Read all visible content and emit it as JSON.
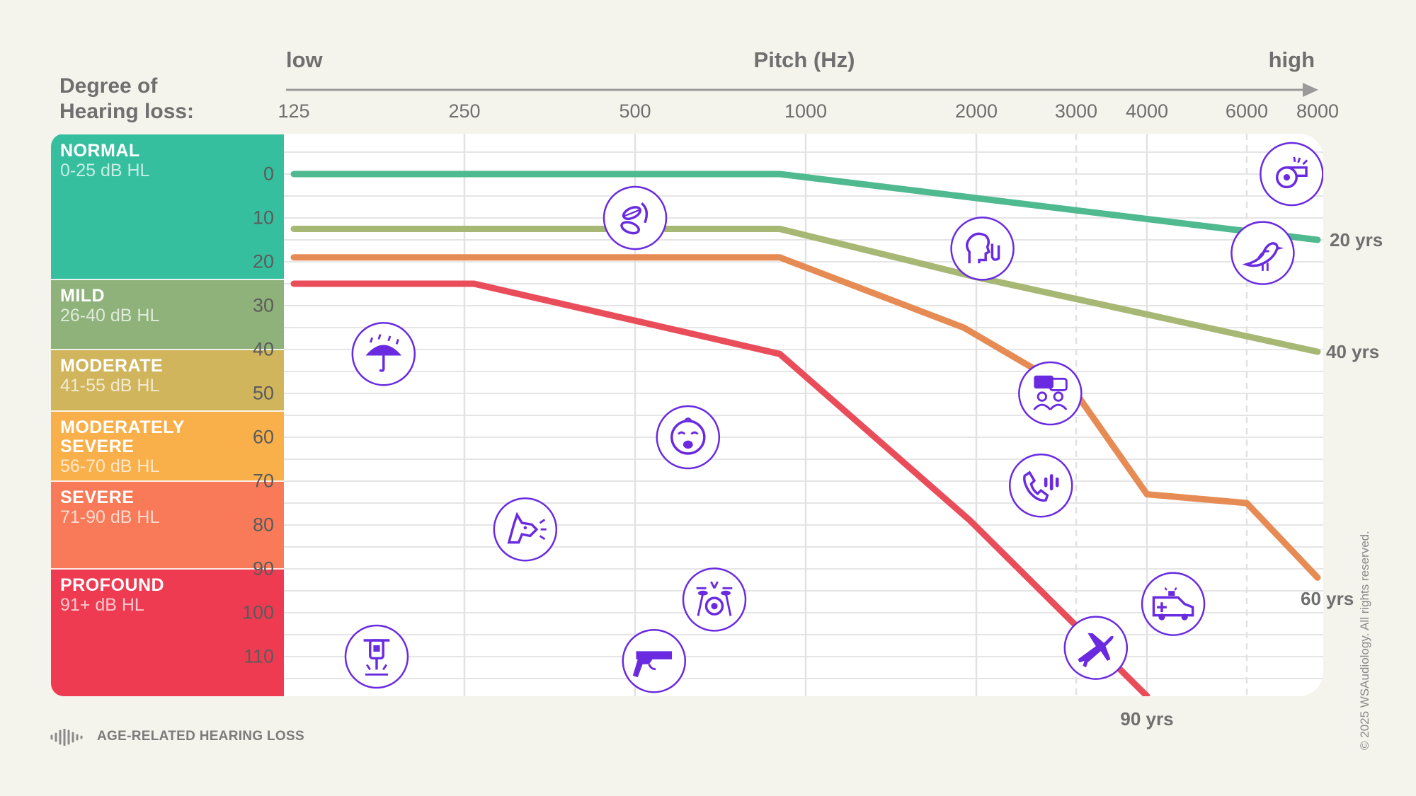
{
  "axis": {
    "low_label": "low",
    "title": "Pitch (Hz)",
    "high_label": "high"
  },
  "degree_title_1": "Degree of",
  "degree_title_2": "Hearing loss:",
  "footer_label": "AGE-RELATED HEARING LOSS",
  "copyright": "© 2025 WSAudiology. All rights reserved.",
  "bands": [
    {
      "name_lines": [
        "NORMAL"
      ],
      "range": "0-25 dB HL",
      "color": "#36bf9f",
      "from_db": -9,
      "to_db": 24
    },
    {
      "name_lines": [
        "MILD"
      ],
      "range": "26-40 dB HL",
      "color": "#8eb27a",
      "from_db": 24,
      "to_db": 40
    },
    {
      "name_lines": [
        "MODERATE"
      ],
      "range": "41-55 dB HL",
      "color": "#d0b55c",
      "from_db": 40,
      "to_db": 54
    },
    {
      "name_lines": [
        "MODERATELY",
        "SEVERE"
      ],
      "range": "56-70 dB HL",
      "color": "#f9b04a",
      "from_db": 54,
      "to_db": 70
    },
    {
      "name_lines": [
        "SEVERE"
      ],
      "range": "71-90 dB HL",
      "color": "#f87a58",
      "from_db": 70,
      "to_db": 90
    },
    {
      "name_lines": [
        "PROFOUND"
      ],
      "range": "91+ dB HL",
      "color": "#ee3b51",
      "from_db": 90,
      "to_db": 120
    }
  ],
  "chart_data": {
    "type": "line",
    "title": "Pitch (Hz)",
    "x_ticks": [
      "125",
      "250",
      "500",
      "1000",
      "2000",
      "3000",
      "4000",
      "6000",
      "8000"
    ],
    "x_tick_values": [
      125,
      250,
      500,
      1000,
      2000,
      3000,
      4000,
      6000,
      8000
    ],
    "y_ticks": [
      "0",
      "10",
      "20",
      "30",
      "40",
      "50",
      "60",
      "70",
      "80",
      "90",
      "100",
      "110"
    ],
    "y_tick_values": [
      0,
      10,
      20,
      30,
      40,
      50,
      60,
      70,
      80,
      90,
      100,
      110
    ],
    "x_scale": "log",
    "y_reversed": true,
    "ylim": [
      -9,
      120
    ],
    "grid": true,
    "series": [
      {
        "name": "20 yrs",
        "color": "#4fb98f",
        "x": [
          125,
          900,
          8000
        ],
        "y": [
          0,
          0,
          15
        ]
      },
      {
        "name": "40 yrs",
        "color": "#a7b774",
        "x": [
          125,
          900,
          2000,
          8000
        ],
        "y": [
          12.5,
          12.5,
          23.5,
          40.5
        ]
      },
      {
        "name": "60 yrs",
        "color": "#e78b54",
        "x": [
          125,
          900,
          1900,
          3000,
          4000,
          6000,
          8000
        ],
        "y": [
          19,
          19,
          35,
          50,
          73,
          75,
          92
        ]
      },
      {
        "name": "90 yrs",
        "color": "#e94d5a",
        "x": [
          125,
          260,
          900,
          1950,
          4000
        ],
        "y": [
          25,
          25,
          41,
          79,
          119
        ]
      }
    ],
    "icons": [
      {
        "name": "whistle-icon",
        "x": 7200,
        "y": 0
      },
      {
        "name": "leaves-icon",
        "x": 500,
        "y": 10
      },
      {
        "name": "whisper-icon",
        "x": 2050,
        "y": 17
      },
      {
        "name": "bird-icon",
        "x": 6400,
        "y": 18
      },
      {
        "name": "rain-umbrella-icon",
        "x": 180,
        "y": 41
      },
      {
        "name": "conversation-icon",
        "x": 2700,
        "y": 50
      },
      {
        "name": "crying-baby-icon",
        "x": 620,
        "y": 60
      },
      {
        "name": "phone-ringing-icon",
        "x": 2600,
        "y": 71
      },
      {
        "name": "dog-barking-icon",
        "x": 320,
        "y": 81
      },
      {
        "name": "drums-icon",
        "x": 690,
        "y": 97
      },
      {
        "name": "gun-icon",
        "x": 540,
        "y": 111
      },
      {
        "name": "jackhammer-icon",
        "x": 175,
        "y": 110
      },
      {
        "name": "airplane-icon",
        "x": 3250,
        "y": 108
      },
      {
        "name": "ambulance-icon",
        "x": 4450,
        "y": 98
      }
    ]
  }
}
